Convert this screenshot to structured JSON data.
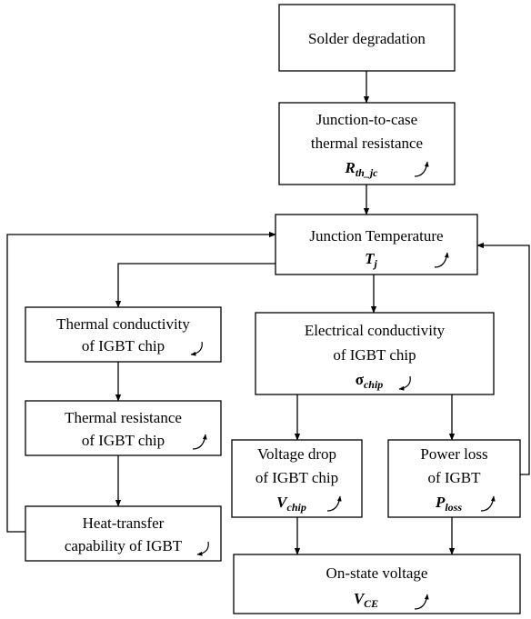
{
  "nodes": [
    {
      "lines": [
        "Solder degradation"
      ]
    },
    {
      "lines": [
        "Junction-to-case",
        "thermal resistance"
      ],
      "symbol": "R",
      "sub": "th_jc"
    },
    {
      "lines": [
        "Junction Temperature"
      ],
      "symbol": "T",
      "sub": "j"
    },
    {
      "lines": [
        "Thermal conductivity",
        "of IGBT chip"
      ]
    },
    {
      "lines": [
        "Electrical conductivity",
        "of IGBT chip"
      ],
      "symbol": "σ",
      "sub": "chip"
    },
    {
      "lines": [
        "Thermal resistance",
        "of IGBT chip"
      ]
    },
    {
      "lines": [
        "Voltage drop",
        "of IGBT chip"
      ],
      "symbol": "V",
      "sub": "chip"
    },
    {
      "lines": [
        "Power loss",
        "of IGBT"
      ],
      "symbol": "P",
      "sub": "loss"
    },
    {
      "lines": [
        "Heat-transfer",
        "capability of IGBT"
      ]
    },
    {
      "lines": [
        "On-state voltage"
      ],
      "symbol": "V",
      "sub": "CE"
    }
  ]
}
